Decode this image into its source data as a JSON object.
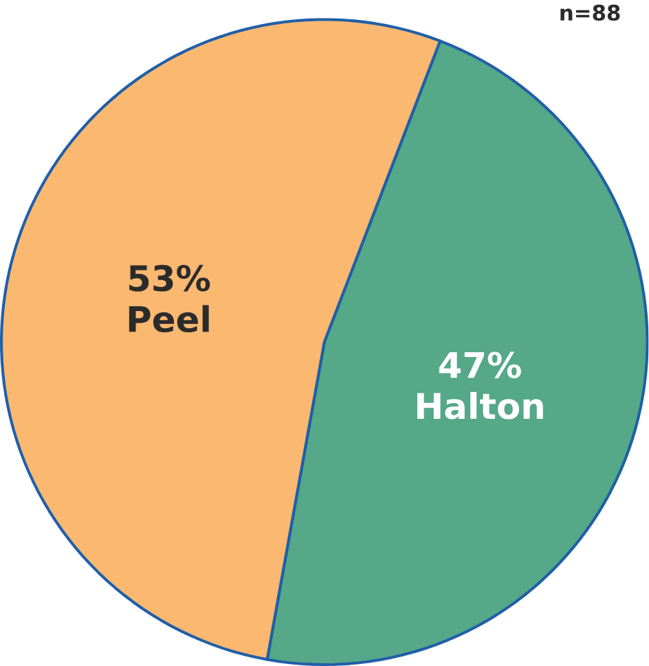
{
  "chart_data": {
    "type": "pie",
    "categories": [
      "Halton",
      "Peel"
    ],
    "values": [
      47,
      53
    ],
    "value_labels": [
      "47%",
      "53%"
    ],
    "colors": [
      "#55a888",
      "#fbb871"
    ],
    "annotations": [
      "n=88"
    ]
  }
}
